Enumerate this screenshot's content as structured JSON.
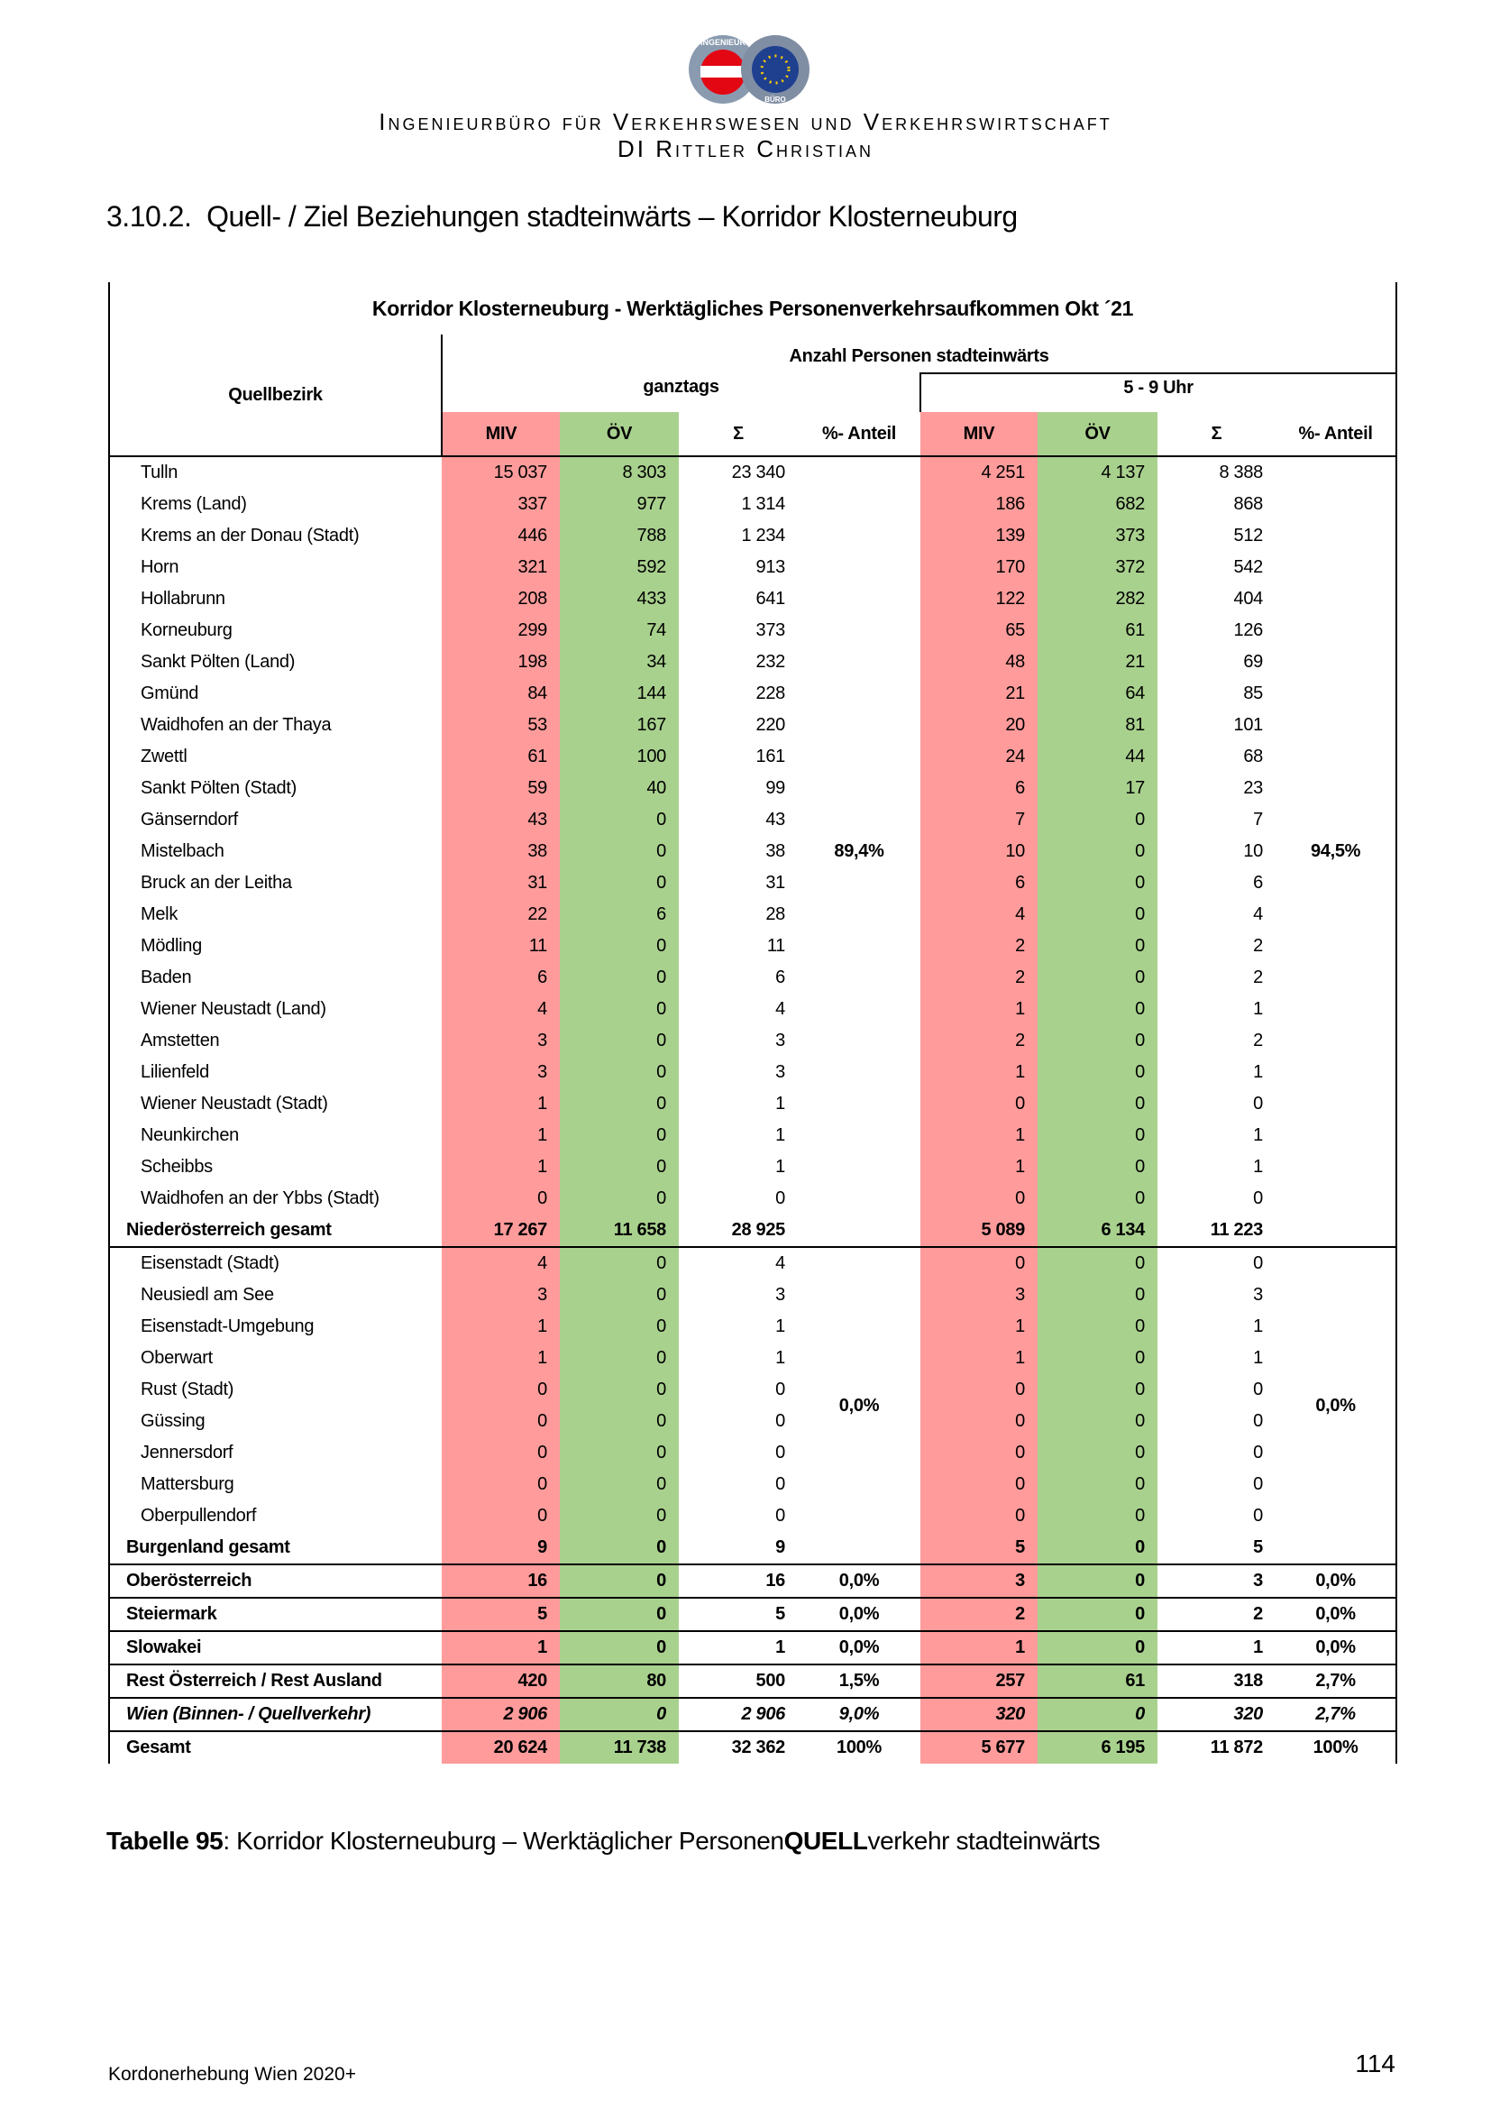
{
  "header": {
    "logo_top": "INGENIEUR",
    "logo_bottom": "BÜRO",
    "line1": "Ingenieurbüro für Verkehrswesen und Verkehrswirtschaft",
    "line2": "DI Rittler Christian"
  },
  "heading": "3.10.2.  Quell- / Ziel Beziehungen stadteinwärts – Korridor Klosterneuburg",
  "table": {
    "title": "Korridor Klosterneuburg - Werktägliches Personenverkehrsaufkommen Okt ´21",
    "super_header": "Anzahl Personen stadteinwärts",
    "row_header": "Quellbezirk",
    "periods": [
      "ganztags",
      "5 - 9 Uhr"
    ],
    "columns": [
      "MIV",
      "ÖV",
      "Σ",
      "%- Anteil"
    ],
    "groups": [
      {
        "shares": [
          "89,4%",
          "94,5%"
        ],
        "rows": [
          [
            "Tulln",
            "15 037",
            "8 303",
            "23 340",
            "4 251",
            "4 137",
            "8 388"
          ],
          [
            "Krems (Land)",
            "337",
            "977",
            "1 314",
            "186",
            "682",
            "868"
          ],
          [
            "Krems an der Donau (Stadt)",
            "446",
            "788",
            "1 234",
            "139",
            "373",
            "512"
          ],
          [
            "Horn",
            "321",
            "592",
            "913",
            "170",
            "372",
            "542"
          ],
          [
            "Hollabrunn",
            "208",
            "433",
            "641",
            "122",
            "282",
            "404"
          ],
          [
            "Korneuburg",
            "299",
            "74",
            "373",
            "65",
            "61",
            "126"
          ],
          [
            "Sankt Pölten (Land)",
            "198",
            "34",
            "232",
            "48",
            "21",
            "69"
          ],
          [
            "Gmünd",
            "84",
            "144",
            "228",
            "21",
            "64",
            "85"
          ],
          [
            "Waidhofen an der Thaya",
            "53",
            "167",
            "220",
            "20",
            "81",
            "101"
          ],
          [
            "Zwettl",
            "61",
            "100",
            "161",
            "24",
            "44",
            "68"
          ],
          [
            "Sankt Pölten (Stadt)",
            "59",
            "40",
            "99",
            "6",
            "17",
            "23"
          ],
          [
            "Gänserndorf",
            "43",
            "0",
            "43",
            "7",
            "0",
            "7"
          ],
          [
            "Mistelbach",
            "38",
            "0",
            "38",
            "10",
            "0",
            "10"
          ],
          [
            "Bruck an der Leitha",
            "31",
            "0",
            "31",
            "6",
            "0",
            "6"
          ],
          [
            "Melk",
            "22",
            "6",
            "28",
            "4",
            "0",
            "4"
          ],
          [
            "Mödling",
            "11",
            "0",
            "11",
            "2",
            "0",
            "2"
          ],
          [
            "Baden",
            "6",
            "0",
            "6",
            "2",
            "0",
            "2"
          ],
          [
            "Wiener Neustadt (Land)",
            "4",
            "0",
            "4",
            "1",
            "0",
            "1"
          ],
          [
            "Amstetten",
            "3",
            "0",
            "3",
            "2",
            "0",
            "2"
          ],
          [
            "Lilienfeld",
            "3",
            "0",
            "3",
            "1",
            "0",
            "1"
          ],
          [
            "Wiener Neustadt (Stadt)",
            "1",
            "0",
            "1",
            "0",
            "0",
            "0"
          ],
          [
            "Neunkirchen",
            "1",
            "0",
            "1",
            "1",
            "0",
            "1"
          ],
          [
            "Scheibbs",
            "1",
            "0",
            "1",
            "1",
            "0",
            "1"
          ],
          [
            "Waidhofen an der Ybbs (Stadt)",
            "0",
            "0",
            "0",
            "0",
            "0",
            "0"
          ],
          [
            "Niederösterreich gesamt",
            "17 267",
            "11 658",
            "28 925",
            "5 089",
            "6 134",
            "11 223"
          ]
        ]
      },
      {
        "shares": [
          "0,0%",
          "0,0%"
        ],
        "rows": [
          [
            "Eisenstadt (Stadt)",
            "4",
            "0",
            "4",
            "0",
            "0",
            "0"
          ],
          [
            "Neusiedl am See",
            "3",
            "0",
            "3",
            "3",
            "0",
            "3"
          ],
          [
            "Eisenstadt-Umgebung",
            "1",
            "0",
            "1",
            "1",
            "0",
            "1"
          ],
          [
            "Oberwart",
            "1",
            "0",
            "1",
            "1",
            "0",
            "1"
          ],
          [
            "Rust (Stadt)",
            "0",
            "0",
            "0",
            "0",
            "0",
            "0"
          ],
          [
            "Güssing",
            "0",
            "0",
            "0",
            "0",
            "0",
            "0"
          ],
          [
            "Jennersdorf",
            "0",
            "0",
            "0",
            "0",
            "0",
            "0"
          ],
          [
            "Mattersburg",
            "0",
            "0",
            "0",
            "0",
            "0",
            "0"
          ],
          [
            "Oberpullendorf",
            "0",
            "0",
            "0",
            "0",
            "0",
            "0"
          ],
          [
            "Burgenland gesamt",
            "9",
            "0",
            "9",
            "5",
            "0",
            "5"
          ]
        ]
      },
      {
        "shares": [
          "0,0%",
          "0,0%"
        ],
        "rows": [
          [
            "Oberösterreich",
            "16",
            "0",
            "16",
            "3",
            "0",
            "3"
          ]
        ]
      },
      {
        "shares": [
          "0,0%",
          "0,0%"
        ],
        "rows": [
          [
            "Steiermark",
            "5",
            "0",
            "5",
            "2",
            "0",
            "2"
          ]
        ]
      },
      {
        "shares": [
          "0,0%",
          "0,0%"
        ],
        "rows": [
          [
            "Slowakei",
            "1",
            "0",
            "1",
            "1",
            "0",
            "1"
          ]
        ]
      },
      {
        "shares": [
          "1,5%",
          "2,7%"
        ],
        "rows": [
          [
            "Rest Österreich / Rest Ausland",
            "420",
            "80",
            "500",
            "257",
            "61",
            "318"
          ]
        ]
      },
      {
        "shares": [
          "9,0%",
          "2,7%"
        ],
        "style": "italic",
        "rows": [
          [
            "Wien (Binnen- / Quellverkehr)",
            "2 906",
            "0",
            "2 906",
            "320",
            "0",
            "320"
          ]
        ]
      },
      {
        "shares": [
          "100%",
          "100%"
        ],
        "rows": [
          [
            "Gesamt",
            "20 624",
            "11 738",
            "32 362",
            "5 677",
            "6 195",
            "11 872"
          ]
        ]
      }
    ]
  },
  "caption": {
    "label": "Tabelle 95",
    "text1": ": Korridor Klosterneuburg – Werktäglicher Personen",
    "bold": "QUELL",
    "text2": "verkehr stadteinwärts"
  },
  "footer": {
    "left": "Kordonerhebung Wien 2020+",
    "page": "114"
  }
}
